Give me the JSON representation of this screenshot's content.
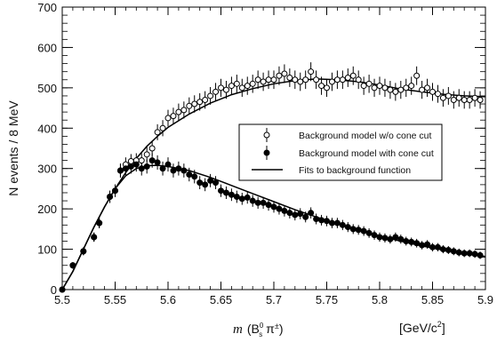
{
  "chart_data": {
    "type": "scatter",
    "xlim": [
      5.5,
      5.9
    ],
    "ylim": [
      0,
      700
    ],
    "x_ticks": [
      "5.5",
      "5.55",
      "5.6",
      "5.65",
      "5.7",
      "5.75",
      "5.8",
      "5.85",
      "5.9"
    ],
    "y_ticks": [
      "0",
      "100",
      "200",
      "300",
      "400",
      "500",
      "600",
      "700"
    ],
    "x_tick_values": [
      5.5,
      5.55,
      5.6,
      5.65,
      5.7,
      5.75,
      5.8,
      5.85,
      5.9
    ],
    "y_tick_values": [
      0,
      100,
      200,
      300,
      400,
      500,
      600,
      700
    ],
    "xlabel_var": "m",
    "xlabel_rest": "(B",
    "xlabel_sup": "0",
    "xlabel_sub": "s",
    "xlabel_pi": " π",
    "xlabel_pm": "±",
    "xlabel_close": ")",
    "xunit": "[GeV/c",
    "xunit_sup": "2",
    "xunit_close": "]",
    "ylabel": "N events / 8 MeV",
    "legend": {
      "items": [
        "Background model w/o cone cut",
        "Background model with cone cut",
        "Fits to background function"
      ]
    },
    "series": [
      {
        "name": "Background model w/o cone cut",
        "marker": "open-circle",
        "x": [
          5.5,
          5.51,
          5.52,
          5.53,
          5.535,
          5.545,
          5.55,
          5.555,
          5.56,
          5.565,
          5.57,
          5.575,
          5.58,
          5.585,
          5.59,
          5.595,
          5.6,
          5.605,
          5.61,
          5.615,
          5.62,
          5.625,
          5.63,
          5.635,
          5.64,
          5.645,
          5.65,
          5.655,
          5.66,
          5.665,
          5.67,
          5.675,
          5.68,
          5.685,
          5.69,
          5.695,
          5.7,
          5.705,
          5.71,
          5.715,
          5.72,
          5.725,
          5.73,
          5.735,
          5.74,
          5.745,
          5.75,
          5.755,
          5.76,
          5.765,
          5.77,
          5.775,
          5.78,
          5.785,
          5.79,
          5.795,
          5.8,
          5.805,
          5.81,
          5.815,
          5.82,
          5.825,
          5.83,
          5.835,
          5.84,
          5.845,
          5.85,
          5.855,
          5.86,
          5.865,
          5.87,
          5.875,
          5.88,
          5.885,
          5.89,
          5.895
        ],
        "y": [
          0,
          60,
          95,
          130,
          165,
          230,
          245,
          295,
          310,
          318,
          320,
          320,
          335,
          350,
          390,
          400,
          425,
          430,
          440,
          445,
          455,
          460,
          465,
          470,
          480,
          490,
          500,
          495,
          505,
          510,
          500,
          505,
          510,
          520,
          515,
          520,
          520,
          530,
          535,
          525,
          520,
          515,
          520,
          540,
          520,
          505,
          500,
          515,
          520,
          520,
          525,
          530,
          520,
          505,
          510,
          500,
          505,
          500,
          495,
          490,
          495,
          500,
          505,
          530,
          495,
          500,
          490,
          485,
          475,
          480,
          470,
          475,
          470,
          470,
          475,
          470
        ]
      },
      {
        "name": "Background model with cone cut",
        "marker": "filled-circle",
        "x": [
          5.5,
          5.51,
          5.52,
          5.53,
          5.535,
          5.545,
          5.55,
          5.555,
          5.56,
          5.565,
          5.57,
          5.575,
          5.58,
          5.585,
          5.59,
          5.595,
          5.6,
          5.605,
          5.61,
          5.615,
          5.62,
          5.625,
          5.63,
          5.635,
          5.64,
          5.645,
          5.65,
          5.655,
          5.66,
          5.665,
          5.67,
          5.675,
          5.68,
          5.685,
          5.69,
          5.695,
          5.7,
          5.705,
          5.71,
          5.715,
          5.72,
          5.725,
          5.73,
          5.735,
          5.74,
          5.745,
          5.75,
          5.755,
          5.76,
          5.765,
          5.77,
          5.775,
          5.78,
          5.785,
          5.79,
          5.795,
          5.8,
          5.805,
          5.81,
          5.815,
          5.82,
          5.825,
          5.83,
          5.835,
          5.84,
          5.845,
          5.85,
          5.855,
          5.86,
          5.865,
          5.87,
          5.875,
          5.88,
          5.885,
          5.89,
          5.895
        ],
        "y": [
          0,
          60,
          95,
          130,
          165,
          230,
          245,
          295,
          300,
          305,
          310,
          300,
          305,
          320,
          315,
          300,
          310,
          295,
          300,
          295,
          285,
          280,
          265,
          260,
          270,
          265,
          245,
          240,
          235,
          230,
          225,
          228,
          220,
          215,
          215,
          210,
          205,
          200,
          195,
          190,
          185,
          188,
          180,
          190,
          175,
          172,
          170,
          165,
          165,
          160,
          155,
          150,
          148,
          145,
          140,
          135,
          130,
          128,
          125,
          130,
          125,
          120,
          118,
          115,
          110,
          112,
          105,
          105,
          100,
          98,
          95,
          92,
          90,
          90,
          88,
          85
        ]
      }
    ],
    "fits": [
      {
        "name": "Fits to background function",
        "for": "Background model w/o cone cut",
        "x": [
          5.5,
          5.51,
          5.52,
          5.53,
          5.54,
          5.55,
          5.56,
          5.57,
          5.58,
          5.59,
          5.6,
          5.62,
          5.64,
          5.66,
          5.68,
          5.7,
          5.72,
          5.74,
          5.76,
          5.78,
          5.8,
          5.82,
          5.84,
          5.86,
          5.88,
          5.9
        ],
        "y": [
          0,
          45,
          100,
          155,
          205,
          250,
          290,
          325,
          355,
          380,
          402,
          435,
          462,
          483,
          498,
          510,
          518,
          522,
          520,
          515,
          507,
          497,
          490,
          484,
          480,
          478
        ]
      },
      {
        "name": "Fits to background function",
        "for": "Background model with cone cut",
        "x": [
          5.5,
          5.51,
          5.52,
          5.53,
          5.54,
          5.55,
          5.56,
          5.57,
          5.58,
          5.59,
          5.6,
          5.62,
          5.64,
          5.66,
          5.68,
          5.7,
          5.72,
          5.74,
          5.76,
          5.78,
          5.8,
          5.82,
          5.84,
          5.86,
          5.88,
          5.9
        ],
        "y": [
          0,
          45,
          100,
          155,
          205,
          250,
          282,
          300,
          307,
          308,
          305,
          295,
          278,
          258,
          238,
          218,
          198,
          180,
          163,
          148,
          133,
          120,
          108,
          98,
          90,
          82
        ]
      }
    ],
    "grid": false,
    "legend_position": "middle-right"
  }
}
